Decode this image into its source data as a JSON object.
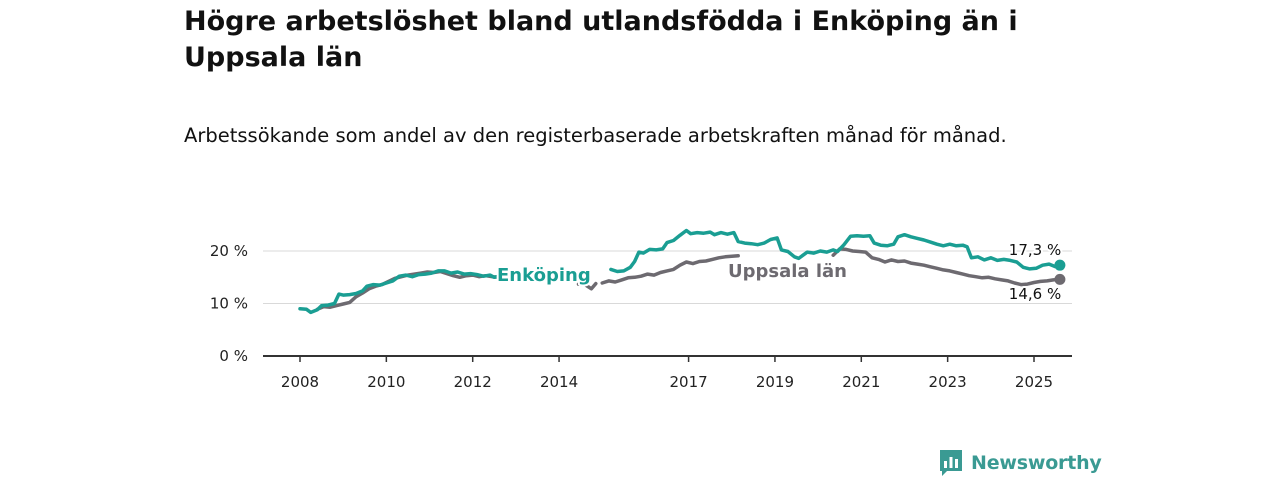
{
  "title": "Högre arbetslöshet bland utlandsfödda i Enköping än i Uppsala län",
  "subtitle": "Arbetssökande som andel av den registerbaserade arbetskraften månad för månad.",
  "brand": {
    "name": "Newsworthy",
    "logo_icon": "newsworthy-logo-icon",
    "color": "#3a9a93"
  },
  "chart_data": {
    "type": "line",
    "title": "Högre arbetslöshet bland utlandsfödda i Enköping än i Uppsala län",
    "subtitle": "Arbetssökande som andel av den registerbaserade arbetskraften månad för månad.",
    "xlabel": "",
    "ylabel": "",
    "xlim": [
      2007.8,
      2025.9
    ],
    "ylim": [
      0,
      25
    ],
    "y_ticks": [
      0,
      10,
      20
    ],
    "y_tick_labels": [
      "0 %",
      "10 %",
      "20 %"
    ],
    "x_ticks": [
      2008,
      2010,
      2012,
      2014,
      2017,
      2019,
      2021,
      2023,
      2025
    ],
    "x_tick_labels": [
      "2008",
      "2010",
      "2012",
      "2014",
      "2017",
      "2019",
      "2021",
      "2023",
      "2025"
    ],
    "grid": "horizontal",
    "series": [
      {
        "name": "Enköping",
        "color": "#1a9e93",
        "end_label": "17,3 %",
        "segments": [
          [
            [
              2008.0,
              9.0
            ],
            [
              2008.15,
              8.9
            ],
            [
              2008.25,
              8.3
            ],
            [
              2008.4,
              8.8
            ],
            [
              2008.5,
              9.6
            ],
            [
              2008.65,
              9.7
            ],
            [
              2008.8,
              10.0
            ],
            [
              2008.9,
              11.8
            ],
            [
              2009.0,
              11.6
            ],
            [
              2009.15,
              11.7
            ],
            [
              2009.3,
              11.9
            ],
            [
              2009.45,
              12.4
            ],
            [
              2009.55,
              13.3
            ],
            [
              2009.7,
              13.6
            ],
            [
              2009.85,
              13.5
            ],
            [
              2010.0,
              13.9
            ],
            [
              2010.15,
              14.3
            ],
            [
              2010.3,
              15.2
            ],
            [
              2010.45,
              15.4
            ],
            [
              2010.6,
              15.1
            ],
            [
              2010.75,
              15.5
            ],
            [
              2010.9,
              15.6
            ],
            [
              2011.05,
              15.8
            ],
            [
              2011.2,
              16.2
            ],
            [
              2011.35,
              16.2
            ],
            [
              2011.5,
              15.8
            ],
            [
              2011.65,
              16.0
            ],
            [
              2011.8,
              15.6
            ],
            [
              2011.95,
              15.7
            ],
            [
              2012.1,
              15.5
            ],
            [
              2012.25,
              15.2
            ],
            [
              2012.4,
              15.4
            ],
            [
              2012.5,
              15.0
            ],
            [
              2012.6,
              15.2
            ],
            [
              2012.7,
              15.1
            ],
            [
              2012.85,
              15.3
            ],
            [
              2012.9,
              14.6
            ],
            [
              2013.05,
              15.2
            ]
          ],
          [
            [
              2015.2,
              16.5
            ],
            [
              2015.35,
              16.1
            ],
            [
              2015.5,
              16.2
            ],
            [
              2015.65,
              16.9
            ],
            [
              2015.75,
              18.0
            ],
            [
              2015.85,
              19.8
            ],
            [
              2015.95,
              19.6
            ],
            [
              2016.1,
              20.3
            ],
            [
              2016.25,
              20.2
            ],
            [
              2016.4,
              20.4
            ],
            [
              2016.5,
              21.6
            ],
            [
              2016.65,
              22.0
            ],
            [
              2016.8,
              23.0
            ],
            [
              2016.95,
              23.9
            ],
            [
              2017.05,
              23.3
            ],
            [
              2017.2,
              23.5
            ],
            [
              2017.35,
              23.4
            ],
            [
              2017.5,
              23.6
            ],
            [
              2017.6,
              23.1
            ],
            [
              2017.75,
              23.5
            ],
            [
              2017.9,
              23.2
            ],
            [
              2018.05,
              23.5
            ],
            [
              2018.15,
              21.8
            ],
            [
              2018.3,
              21.5
            ],
            [
              2018.45,
              21.4
            ],
            [
              2018.6,
              21.2
            ],
            [
              2018.75,
              21.5
            ],
            [
              2018.9,
              22.2
            ],
            [
              2019.05,
              22.5
            ],
            [
              2019.15,
              20.2
            ],
            [
              2019.3,
              19.9
            ],
            [
              2019.45,
              18.9
            ],
            [
              2019.55,
              18.6
            ],
            [
              2019.65,
              19.2
            ],
            [
              2019.75,
              19.8
            ],
            [
              2019.9,
              19.6
            ],
            [
              2020.05,
              20.0
            ],
            [
              2020.2,
              19.8
            ],
            [
              2020.35,
              20.2
            ],
            [
              2020.45,
              19.9
            ],
            [
              2020.6,
              21.2
            ],
            [
              2020.75,
              22.8
            ],
            [
              2020.9,
              22.9
            ],
            [
              2021.05,
              22.8
            ],
            [
              2021.2,
              22.9
            ],
            [
              2021.3,
              21.5
            ],
            [
              2021.45,
              21.1
            ],
            [
              2021.6,
              21.0
            ],
            [
              2021.75,
              21.3
            ],
            [
              2021.85,
              22.7
            ],
            [
              2022.0,
              23.1
            ],
            [
              2022.15,
              22.7
            ],
            [
              2022.3,
              22.4
            ],
            [
              2022.45,
              22.1
            ],
            [
              2022.6,
              21.7
            ],
            [
              2022.75,
              21.3
            ],
            [
              2022.9,
              21.0
            ],
            [
              2023.05,
              21.3
            ],
            [
              2023.2,
              21.0
            ],
            [
              2023.35,
              21.1
            ],
            [
              2023.45,
              20.8
            ],
            [
              2023.55,
              18.7
            ],
            [
              2023.7,
              18.9
            ],
            [
              2023.85,
              18.3
            ],
            [
              2024.0,
              18.7
            ],
            [
              2024.15,
              18.2
            ],
            [
              2024.3,
              18.4
            ],
            [
              2024.45,
              18.2
            ],
            [
              2024.6,
              17.9
            ],
            [
              2024.75,
              16.9
            ],
            [
              2024.9,
              16.6
            ],
            [
              2025.05,
              16.7
            ],
            [
              2025.2,
              17.3
            ],
            [
              2025.35,
              17.5
            ],
            [
              2025.5,
              17.0
            ],
            [
              2025.6,
              17.3
            ]
          ]
        ]
      },
      {
        "name": "Uppsala län",
        "color": "#6d6a70",
        "end_label": "14,6 %",
        "segments": [
          [
            [
              2008.4,
              8.9
            ],
            [
              2008.55,
              9.4
            ],
            [
              2008.7,
              9.3
            ],
            [
              2008.85,
              9.6
            ],
            [
              2009.0,
              9.9
            ],
            [
              2009.15,
              10.2
            ],
            [
              2009.3,
              11.3
            ],
            [
              2009.45,
              12.0
            ],
            [
              2009.6,
              12.8
            ],
            [
              2009.75,
              13.3
            ],
            [
              2009.9,
              13.6
            ],
            [
              2010.05,
              14.2
            ],
            [
              2010.2,
              14.8
            ],
            [
              2010.35,
              15.1
            ],
            [
              2010.5,
              15.4
            ],
            [
              2010.65,
              15.6
            ],
            [
              2010.8,
              15.8
            ],
            [
              2010.95,
              16.0
            ],
            [
              2011.1,
              15.9
            ],
            [
              2011.25,
              16.1
            ],
            [
              2011.4,
              15.7
            ],
            [
              2011.55,
              15.3
            ],
            [
              2011.7,
              15.0
            ],
            [
              2011.85,
              15.3
            ],
            [
              2012.0,
              15.4
            ],
            [
              2012.15,
              15.1
            ],
            [
              2012.3,
              15.3
            ],
            [
              2012.45,
              15.1
            ],
            [
              2012.6,
              15.0
            ],
            [
              2012.75,
              14.8
            ],
            [
              2012.85,
              14.6
            ],
            [
              2012.95,
              14.7
            ]
          ],
          [
            [
              2014.45,
              13.7
            ],
            [
              2014.6,
              13.6
            ],
            [
              2014.75,
              12.8
            ],
            [
              2014.85,
              13.8
            ]
          ],
          [
            [
              2015.0,
              13.9
            ],
            [
              2015.15,
              14.3
            ],
            [
              2015.3,
              14.1
            ],
            [
              2015.45,
              14.5
            ],
            [
              2015.6,
              14.9
            ],
            [
              2015.75,
              15.0
            ],
            [
              2015.9,
              15.2
            ],
            [
              2016.05,
              15.6
            ],
            [
              2016.2,
              15.4
            ],
            [
              2016.35,
              15.9
            ],
            [
              2016.5,
              16.2
            ],
            [
              2016.65,
              16.5
            ],
            [
              2016.8,
              17.3
            ],
            [
              2016.95,
              17.9
            ],
            [
              2017.1,
              17.6
            ],
            [
              2017.25,
              18.0
            ],
            [
              2017.4,
              18.1
            ],
            [
              2017.55,
              18.4
            ],
            [
              2017.7,
              18.7
            ],
            [
              2017.85,
              18.9
            ],
            [
              2018.0,
              19.0
            ],
            [
              2018.15,
              19.1
            ]
          ],
          [
            [
              2020.35,
              19.2
            ],
            [
              2020.5,
              20.4
            ],
            [
              2020.65,
              20.3
            ],
            [
              2020.8,
              20.0
            ],
            [
              2020.95,
              19.9
            ],
            [
              2021.1,
              19.8
            ],
            [
              2021.25,
              18.7
            ],
            [
              2021.4,
              18.4
            ],
            [
              2021.55,
              17.9
            ],
            [
              2021.7,
              18.3
            ],
            [
              2021.85,
              18.0
            ],
            [
              2022.0,
              18.1
            ],
            [
              2022.15,
              17.7
            ],
            [
              2022.3,
              17.5
            ],
            [
              2022.45,
              17.3
            ],
            [
              2022.6,
              17.0
            ],
            [
              2022.75,
              16.7
            ],
            [
              2022.9,
              16.4
            ],
            [
              2023.05,
              16.2
            ],
            [
              2023.2,
              15.9
            ],
            [
              2023.35,
              15.6
            ],
            [
              2023.5,
              15.3
            ],
            [
              2023.65,
              15.1
            ],
            [
              2023.8,
              14.9
            ],
            [
              2023.95,
              15.0
            ],
            [
              2024.1,
              14.7
            ],
            [
              2024.25,
              14.5
            ],
            [
              2024.4,
              14.3
            ],
            [
              2024.55,
              13.9
            ],
            [
              2024.7,
              13.6
            ],
            [
              2024.85,
              13.7
            ],
            [
              2025.0,
              14.0
            ],
            [
              2025.15,
              14.2
            ],
            [
              2025.3,
              14.3
            ],
            [
              2025.45,
              14.5
            ],
            [
              2025.6,
              14.6
            ]
          ]
        ]
      }
    ]
  }
}
